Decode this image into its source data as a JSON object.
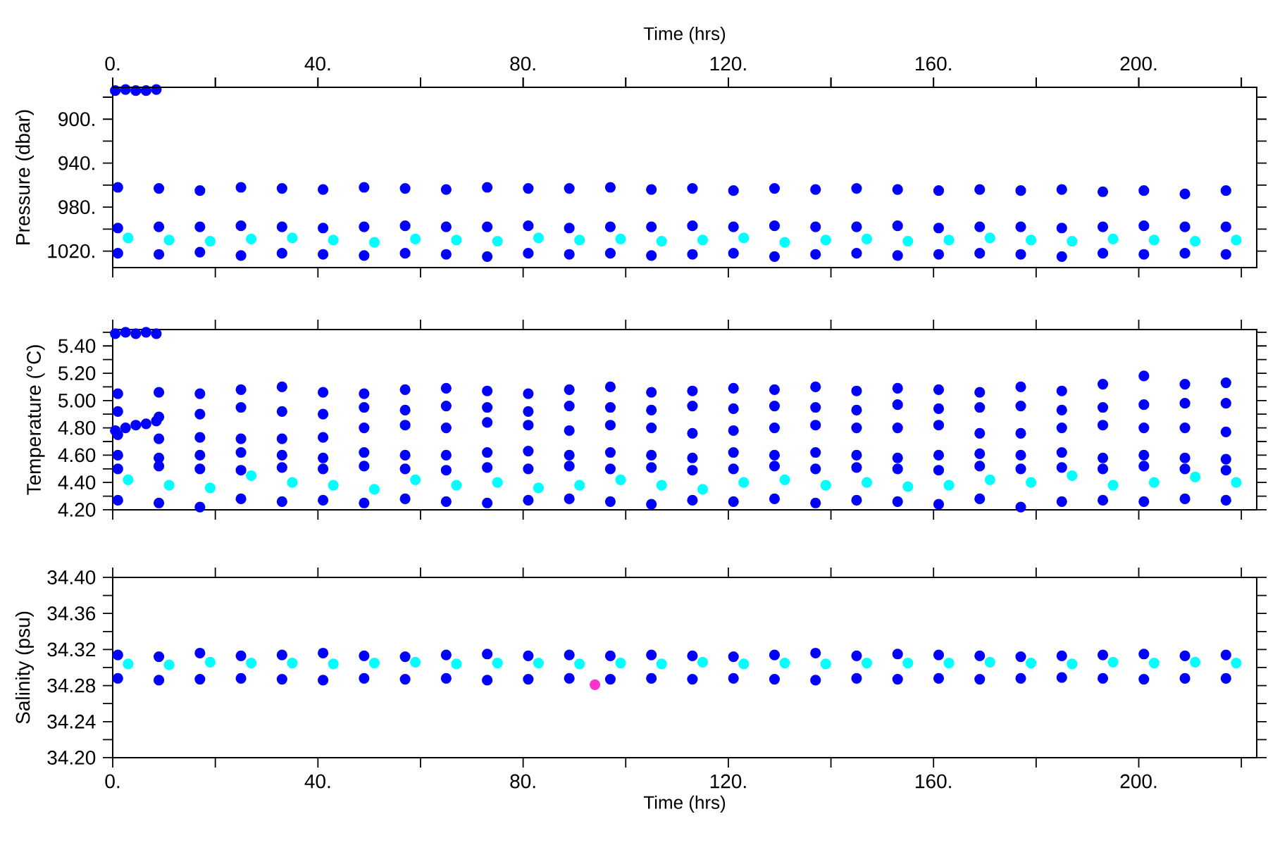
{
  "chart_data": [
    {
      "type": "scatter",
      "marker": "circle",
      "ylabel": "Pressure (dbar)",
      "x2label": "Time (hrs)",
      "tick_labels": "y",
      "xlim": [
        0,
        223
      ],
      "x2lim": [
        0,
        223
      ],
      "xticks": [
        {
          "value": 0,
          "label": null
        },
        {
          "value": 20,
          "label": null
        },
        {
          "value": 40,
          "label": null
        },
        {
          "value": 60,
          "label": null
        },
        {
          "value": 80,
          "label": null
        },
        {
          "value": 100,
          "label": null
        },
        {
          "value": 120,
          "label": null
        },
        {
          "value": 140,
          "label": null
        },
        {
          "value": 160,
          "label": null
        },
        {
          "value": 180,
          "label": null
        },
        {
          "value": 200,
          "label": null
        },
        {
          "value": 220,
          "label": null
        }
      ],
      "x2ticks": [
        {
          "value": 0,
          "label": "0."
        },
        {
          "value": 20,
          "label": null
        },
        {
          "value": 40,
          "label": "40."
        },
        {
          "value": 60,
          "label": null
        },
        {
          "value": 80,
          "label": "80."
        },
        {
          "value": 100,
          "label": null
        },
        {
          "value": 120,
          "label": "120."
        },
        {
          "value": 140,
          "label": null
        },
        {
          "value": 160,
          "label": "160."
        },
        {
          "value": 180,
          "label": null
        },
        {
          "value": 200,
          "label": "200."
        },
        {
          "value": 220,
          "label": null
        }
      ],
      "ylim": [
        1035,
        871
      ],
      "yticks": [
        {
          "value": 880,
          "label": null
        },
        {
          "value": 900,
          "label": "900."
        },
        {
          "value": 920,
          "label": null
        },
        {
          "value": 940,
          "label": "940."
        },
        {
          "value": 960,
          "label": null
        },
        {
          "value": 980,
          "label": "980."
        },
        {
          "value": 1000,
          "label": null
        },
        {
          "value": 1020,
          "label": "1020."
        }
      ],
      "series": [
        {
          "color": "#0000ff",
          "x": [
            0.5,
            2.5,
            4.5,
            6.5,
            8.5
          ],
          "values": [
            874,
            873,
            874,
            874,
            873
          ]
        },
        {
          "color": "#0000ff",
          "x": [
            1,
            9,
            17,
            25,
            33,
            41,
            49,
            57,
            65,
            73,
            81,
            89,
            97,
            105,
            113,
            121,
            129,
            137,
            145,
            153,
            161,
            169,
            177,
            185,
            193,
            201,
            209,
            217
          ],
          "values": [
            962,
            963,
            965,
            962,
            963,
            964,
            962,
            963,
            964,
            962,
            963,
            963,
            962,
            964,
            963,
            965,
            963,
            964,
            963,
            964,
            965,
            964,
            965,
            964,
            966,
            965,
            968,
            965
          ]
        },
        {
          "color": "#0000ff",
          "x": [
            1,
            9,
            17,
            25,
            33,
            41,
            49,
            57,
            65,
            73,
            81,
            89,
            97,
            105,
            113,
            121,
            129,
            137,
            145,
            153,
            161,
            169,
            177,
            185,
            193,
            201,
            209,
            217
          ],
          "values": [
            999,
            998,
            998,
            997,
            998,
            999,
            998,
            997,
            998,
            998,
            997,
            999,
            998,
            998,
            997,
            998,
            997,
            998,
            998,
            997,
            999,
            998,
            998,
            999,
            998,
            997,
            998,
            998
          ]
        },
        {
          "color": "#0000ff",
          "x": [
            1,
            9,
            17,
            25,
            33,
            41,
            49,
            57,
            65,
            73,
            81,
            89,
            97,
            105,
            113,
            121,
            129,
            137,
            145,
            153,
            161,
            169,
            177,
            185,
            193,
            201,
            209,
            217
          ],
          "values": [
            1022,
            1023,
            1021,
            1024,
            1022,
            1023,
            1024,
            1022,
            1023,
            1025,
            1022,
            1023,
            1022,
            1024,
            1023,
            1022,
            1025,
            1023,
            1022,
            1024,
            1023,
            1022,
            1023,
            1025,
            1022,
            1023,
            1022,
            1023
          ]
        },
        {
          "color": "#00ffff",
          "x": [
            3,
            11,
            19,
            27,
            35,
            43,
            51,
            59,
            67,
            75,
            83,
            91,
            99,
            107,
            115,
            123,
            131,
            139,
            147,
            155,
            163,
            171,
            179,
            187,
            195,
            203,
            211,
            219
          ],
          "values": [
            1008,
            1010,
            1011,
            1009,
            1008,
            1010,
            1012,
            1009,
            1010,
            1011,
            1008,
            1010,
            1009,
            1011,
            1010,
            1008,
            1012,
            1010,
            1009,
            1011,
            1010,
            1008,
            1010,
            1011,
            1009,
            1010,
            1011,
            1010
          ]
        }
      ]
    },
    {
      "type": "scatter",
      "marker": "circle",
      "ylabel": "Temperature (°C)",
      "tick_labels": "y",
      "xlim": [
        0,
        223
      ],
      "xticks": [
        {
          "value": 0,
          "label": null
        },
        {
          "value": 20,
          "label": null
        },
        {
          "value": 40,
          "label": null
        },
        {
          "value": 60,
          "label": null
        },
        {
          "value": 80,
          "label": null
        },
        {
          "value": 100,
          "label": null
        },
        {
          "value": 120,
          "label": null
        },
        {
          "value": 140,
          "label": null
        },
        {
          "value": 160,
          "label": null
        },
        {
          "value": 180,
          "label": null
        },
        {
          "value": 200,
          "label": null
        },
        {
          "value": 220,
          "label": null
        }
      ],
      "ylim": [
        4.2,
        5.52
      ],
      "yticks": [
        {
          "value": 4.2,
          "label": "4.20"
        },
        {
          "value": 4.3,
          "label": null
        },
        {
          "value": 4.4,
          "label": "4.40"
        },
        {
          "value": 4.5,
          "label": null
        },
        {
          "value": 4.6,
          "label": "4.60"
        },
        {
          "value": 4.7,
          "label": null
        },
        {
          "value": 4.8,
          "label": "4.80"
        },
        {
          "value": 4.9,
          "label": null
        },
        {
          "value": 5.0,
          "label": "5.00"
        },
        {
          "value": 5.1,
          "label": null
        },
        {
          "value": 5.2,
          "label": "5.20"
        },
        {
          "value": 5.3,
          "label": null
        },
        {
          "value": 5.4,
          "label": "5.40"
        },
        {
          "value": 5.5,
          "label": null
        }
      ],
      "series": [
        {
          "color": "#0000ff",
          "x": [
            0.5,
            2.5,
            4.5,
            6.5,
            8.5
          ],
          "values": [
            5.49,
            5.5,
            5.49,
            5.5,
            5.49
          ]
        },
        {
          "color": "#0000ff",
          "x": [
            0.5,
            2.5,
            4.5,
            6.5,
            8.5
          ],
          "values": [
            4.78,
            4.8,
            4.82,
            4.83,
            4.85
          ]
        },
        {
          "color": "#0000ff",
          "x": [
            1,
            9,
            17,
            25,
            33,
            41,
            49,
            57,
            65,
            73,
            81,
            89,
            97,
            105,
            113,
            121,
            129,
            137,
            145,
            153,
            161,
            169,
            177,
            185,
            193,
            201,
            209,
            217
          ],
          "values": [
            5.05,
            5.06,
            5.05,
            5.08,
            5.1,
            5.06,
            5.05,
            5.08,
            5.09,
            5.07,
            5.05,
            5.08,
            5.1,
            5.06,
            5.07,
            5.09,
            5.08,
            5.1,
            5.07,
            5.09,
            5.08,
            5.06,
            5.1,
            5.07,
            5.12,
            5.18,
            5.12,
            5.13
          ]
        },
        {
          "color": "#0000ff",
          "x": [
            1,
            9,
            17,
            25,
            33,
            41,
            49,
            57,
            65,
            73,
            81,
            89,
            97,
            105,
            113,
            121,
            129,
            137,
            145,
            153,
            161,
            169,
            177,
            185,
            193,
            201,
            209,
            217
          ],
          "values": [
            4.92,
            4.88,
            4.9,
            4.95,
            4.92,
            4.9,
            4.95,
            4.93,
            4.96,
            4.95,
            4.92,
            4.96,
            4.95,
            4.93,
            4.96,
            4.94,
            4.96,
            4.95,
            4.93,
            4.97,
            4.94,
            4.95,
            4.96,
            4.93,
            4.95,
            4.97,
            4.98,
            4.98
          ]
        },
        {
          "color": "#0000ff",
          "x": [
            1,
            9,
            17,
            25,
            33,
            41,
            49,
            57,
            65,
            73,
            81,
            89,
            97,
            105,
            113,
            121,
            129,
            137,
            145,
            153,
            161,
            169,
            177,
            185,
            193,
            201,
            209,
            217
          ],
          "values": [
            4.75,
            4.72,
            4.73,
            4.72,
            4.72,
            4.73,
            4.8,
            4.82,
            4.8,
            4.84,
            4.82,
            4.78,
            4.82,
            4.8,
            4.76,
            4.78,
            4.8,
            4.82,
            4.8,
            4.8,
            4.82,
            4.76,
            4.76,
            4.8,
            4.82,
            4.8,
            4.8,
            4.77
          ]
        },
        {
          "color": "#0000ff",
          "x": [
            1,
            9,
            17,
            25,
            33,
            41,
            49,
            57,
            65,
            73,
            81,
            89,
            97,
            105,
            113,
            121,
            129,
            137,
            145,
            153,
            161,
            169,
            177,
            185,
            193,
            201,
            209,
            217
          ],
          "values": [
            4.6,
            4.58,
            4.6,
            4.62,
            4.6,
            4.58,
            4.62,
            4.6,
            4.6,
            4.62,
            4.63,
            4.6,
            4.62,
            4.6,
            4.58,
            4.62,
            4.6,
            4.62,
            4.6,
            4.58,
            4.6,
            4.61,
            4.6,
            4.62,
            4.58,
            4.6,
            4.58,
            4.57
          ]
        },
        {
          "color": "#0000ff",
          "x": [
            1,
            9,
            17,
            25,
            33,
            41,
            49,
            57,
            65,
            73,
            81,
            89,
            97,
            105,
            113,
            121,
            129,
            137,
            145,
            153,
            161,
            169,
            177,
            185,
            193,
            201,
            209,
            217
          ],
          "values": [
            4.5,
            4.52,
            4.5,
            4.49,
            4.51,
            4.5,
            4.52,
            4.5,
            4.49,
            4.51,
            4.5,
            4.52,
            4.5,
            4.51,
            4.49,
            4.5,
            4.52,
            4.5,
            4.51,
            4.5,
            4.49,
            4.52,
            4.5,
            4.51,
            4.5,
            4.52,
            4.5,
            4.49
          ]
        },
        {
          "color": "#0000ff",
          "x": [
            1,
            9,
            17,
            25,
            33,
            41,
            49,
            57,
            65,
            73,
            81,
            89,
            97,
            105,
            113,
            121,
            129,
            137,
            145,
            153,
            161,
            169,
            177,
            185,
            193,
            201,
            209,
            217
          ],
          "values": [
            4.27,
            4.25,
            4.22,
            4.28,
            4.26,
            4.27,
            4.25,
            4.28,
            4.26,
            4.25,
            4.27,
            4.28,
            4.26,
            4.24,
            4.27,
            4.26,
            4.28,
            4.25,
            4.27,
            4.26,
            4.24,
            4.28,
            4.22,
            4.26,
            4.27,
            4.26,
            4.28,
            4.27
          ]
        },
        {
          "color": "#00ffff",
          "x": [
            3,
            11,
            19,
            27,
            35,
            43,
            51,
            59,
            67,
            75,
            83,
            91,
            99,
            107,
            115,
            123,
            131,
            139,
            147,
            155,
            163,
            171,
            179,
            187,
            195,
            203,
            211,
            219
          ],
          "values": [
            4.42,
            4.38,
            4.36,
            4.45,
            4.4,
            4.38,
            4.35,
            4.42,
            4.38,
            4.4,
            4.36,
            4.38,
            4.42,
            4.38,
            4.35,
            4.4,
            4.42,
            4.38,
            4.4,
            4.37,
            4.38,
            4.42,
            4.4,
            4.45,
            4.38,
            4.4,
            4.44,
            4.4
          ]
        }
      ]
    },
    {
      "type": "scatter",
      "marker": "circle",
      "ylabel": "Salinity (psu)",
      "xlabel": "Time (hrs)",
      "xlim": [
        0,
        223
      ],
      "xticks": [
        {
          "value": 0,
          "label": "0."
        },
        {
          "value": 20,
          "label": null
        },
        {
          "value": 40,
          "label": "40."
        },
        {
          "value": 60,
          "label": null
        },
        {
          "value": 80,
          "label": "80."
        },
        {
          "value": 100,
          "label": null
        },
        {
          "value": 120,
          "label": "120."
        },
        {
          "value": 140,
          "label": null
        },
        {
          "value": 160,
          "label": "160."
        },
        {
          "value": 180,
          "label": null
        },
        {
          "value": 200,
          "label": "200."
        },
        {
          "value": 220,
          "label": null
        }
      ],
      "ylim": [
        34.2,
        34.4
      ],
      "yticks": [
        {
          "value": 34.2,
          "label": "34.20"
        },
        {
          "value": 34.22,
          "label": null
        },
        {
          "value": 34.24,
          "label": "34.24"
        },
        {
          "value": 34.26,
          "label": null
        },
        {
          "value": 34.28,
          "label": "34.28"
        },
        {
          "value": 34.3,
          "label": null
        },
        {
          "value": 34.32,
          "label": "34.32"
        },
        {
          "value": 34.34,
          "label": null
        },
        {
          "value": 34.36,
          "label": "34.36"
        },
        {
          "value": 34.38,
          "label": null
        },
        {
          "value": 34.4,
          "label": "34.40"
        }
      ],
      "series": [
        {
          "color": "#0000ff",
          "x": [
            1,
            9,
            17,
            25,
            33,
            41,
            49,
            57,
            65,
            73,
            81,
            89,
            97,
            105,
            113,
            121,
            129,
            137,
            145,
            153,
            161,
            169,
            177,
            185,
            193,
            201,
            209,
            217
          ],
          "values": [
            34.314,
            34.312,
            34.316,
            34.313,
            34.314,
            34.316,
            34.313,
            34.312,
            34.314,
            34.315,
            34.313,
            34.314,
            34.313,
            34.314,
            34.313,
            34.312,
            34.314,
            34.316,
            34.313,
            34.315,
            34.314,
            34.313,
            34.312,
            34.313,
            34.314,
            34.315,
            34.313,
            34.314
          ]
        },
        {
          "color": "#0000ff",
          "x": [
            1,
            9,
            17,
            25,
            33,
            41,
            49,
            57,
            65,
            73,
            81,
            89,
            97,
            105,
            113,
            121,
            129,
            137,
            145,
            153,
            161,
            169,
            177,
            185,
            193,
            201,
            209,
            217
          ],
          "values": [
            34.288,
            34.286,
            34.287,
            34.288,
            34.287,
            34.286,
            34.288,
            34.287,
            34.288,
            34.286,
            34.287,
            34.288,
            34.287,
            34.288,
            34.287,
            34.288,
            34.287,
            34.286,
            34.288,
            34.287,
            34.288,
            34.287,
            34.288,
            34.289,
            34.288,
            34.287,
            34.288,
            34.288
          ]
        },
        {
          "color": "#00ffff",
          "x": [
            3,
            11,
            19,
            27,
            35,
            43,
            51,
            59,
            67,
            75,
            83,
            91,
            99,
            107,
            115,
            123,
            131,
            139,
            147,
            155,
            163,
            171,
            179,
            187,
            195,
            203,
            211,
            219
          ],
          "values": [
            34.304,
            34.303,
            34.306,
            34.305,
            34.305,
            34.304,
            34.305,
            34.306,
            34.304,
            34.305,
            34.305,
            34.304,
            34.305,
            34.304,
            34.306,
            34.304,
            34.305,
            34.304,
            34.305,
            34.305,
            34.305,
            34.306,
            34.305,
            34.304,
            34.306,
            34.305,
            34.306,
            34.305
          ]
        },
        {
          "color": "#ff33cc",
          "x": [
            94
          ],
          "values": [
            34.281
          ]
        }
      ]
    }
  ]
}
